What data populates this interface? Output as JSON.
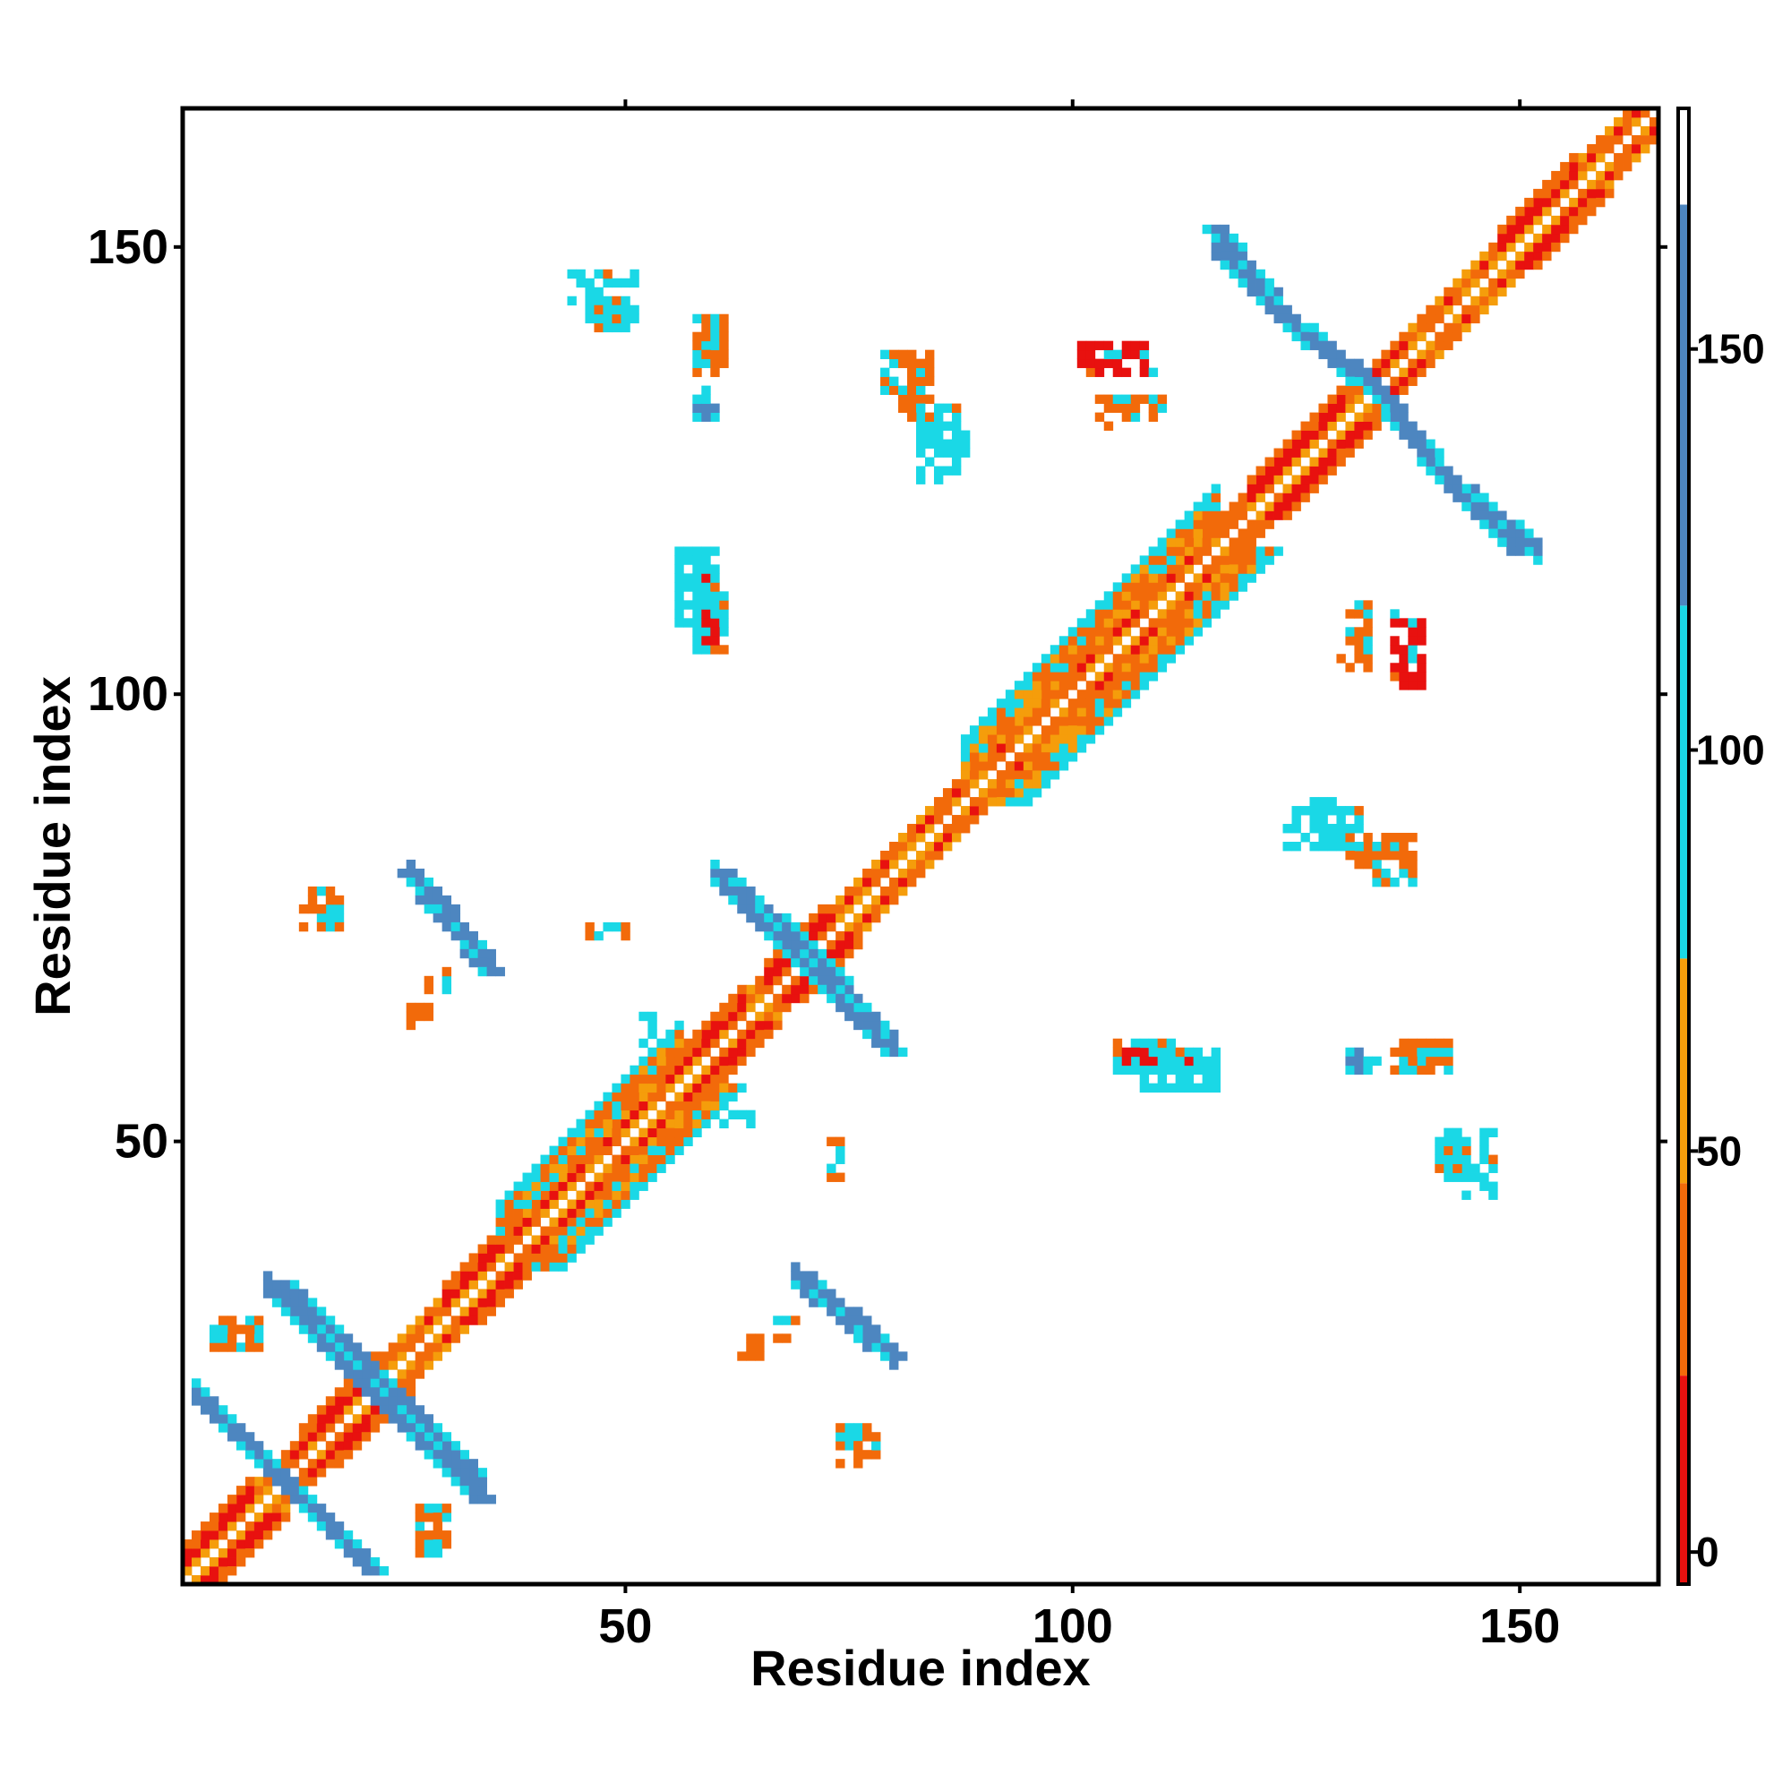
{
  "chart_data": {
    "type": "heatmap",
    "title": "",
    "xlabel": "Residue index",
    "ylabel": "Residue index",
    "xlim": [
      1,
      165
    ],
    "ylim": [
      1,
      165
    ],
    "x_ticks": [
      "50",
      "100",
      "150"
    ],
    "y_ticks": [
      "50",
      "100",
      "150"
    ],
    "colorbar": {
      "range": [
        -4,
        180
      ],
      "ticks": [
        "0",
        "50",
        "100",
        "150"
      ],
      "segments": [
        {
          "from": -4,
          "to": 22,
          "color": "#e8110f"
        },
        {
          "from": 22,
          "to": 46,
          "color": "#f26a0a"
        },
        {
          "from": 46,
          "to": 74,
          "color": "#f59d0b"
        },
        {
          "from": 74,
          "to": 118,
          "color": "#1ad8e6"
        },
        {
          "from": 118,
          "to": 168,
          "color": "#4d86c0"
        },
        {
          "from": 168,
          "to": 180,
          "color": "#ffffff"
        }
      ]
    },
    "grid": false,
    "symmetric": true,
    "diagonal_bands": [
      {
        "from": 1,
        "to": 165
      }
    ],
    "helix_bands": [
      {
        "from": 1,
        "to": 8
      },
      {
        "from": 14,
        "to": 22
      },
      {
        "from": 30,
        "to": 36
      },
      {
        "from": 55,
        "to": 63
      },
      {
        "from": 66,
        "to": 72
      },
      {
        "from": 120,
        "to": 130
      },
      {
        "from": 148,
        "to": 156
      }
    ],
    "sheet_bands": [
      {
        "from": 36,
        "to": 56
      },
      {
        "from": 88,
        "to": 96
      },
      {
        "from": 96,
        "to": 116
      }
    ],
    "antiparallel_pairs": [
      {
        "x": [
          12,
          22
        ],
        "y": [
          2,
          12
        ],
        "color": "blue"
      },
      {
        "x": [
          12,
          24
        ],
        "y": [
          22,
          34
        ],
        "color": "blue"
      },
      {
        "x": [
          22,
          34
        ],
        "y": [
          10,
          22
        ],
        "color": "blue"
      },
      {
        "x": [
          26,
          35
        ],
        "y": [
          69,
          80
        ],
        "color": "blue"
      },
      {
        "x": [
          61,
          72
        ],
        "y": [
          70,
          80
        ],
        "color": "blue"
      },
      {
        "x": [
          70,
          80
        ],
        "y": [
          60,
          70
        ],
        "color": "blue"
      },
      {
        "x": [
          70,
          80
        ],
        "y": [
          26,
          35
        ],
        "color": "blue"
      },
      {
        "x": [
          116,
          124
        ],
        "y": [
          142,
          152
        ],
        "color": "blue"
      },
      {
        "x": [
          124,
          134
        ],
        "y": [
          134,
          142
        ],
        "color": "blue"
      },
      {
        "x": [
          134,
          142
        ],
        "y": [
          124,
          134
        ],
        "color": "blue"
      },
      {
        "x": [
          142,
          150
        ],
        "y": [
          116,
          124
        ],
        "color": "blue"
      }
    ],
    "contact_patches": [
      {
        "x": 44,
        "y": 144,
        "w": 8,
        "h": 4,
        "kind": "cyan"
      },
      {
        "x": 58,
        "y": 138,
        "w": 4,
        "h": 5,
        "kind": "orange"
      },
      {
        "x": 58,
        "y": 131,
        "w": 3,
        "h": 4,
        "kind": "blue"
      },
      {
        "x": 79,
        "y": 132,
        "w": 6,
        "h": 7,
        "kind": "orange"
      },
      {
        "x": 83,
        "y": 127,
        "w": 6,
        "h": 5,
        "kind": "cyan"
      },
      {
        "x": 101,
        "y": 136,
        "w": 9,
        "h": 4,
        "kind": "red"
      },
      {
        "x": 56,
        "y": 108,
        "w": 5,
        "h": 9,
        "kind": "cyan"
      },
      {
        "x": 59,
        "y": 108,
        "w": 2,
        "h": 7,
        "kind": "red"
      },
      {
        "x": 124,
        "y": 83,
        "w": 9,
        "h": 5,
        "kind": "cyan"
      },
      {
        "x": 131,
        "y": 82,
        "w": 6,
        "h": 3,
        "kind": "orange"
      },
      {
        "x": 105,
        "y": 58,
        "w": 9,
        "h": 4,
        "kind": "cyan"
      },
      {
        "x": 106,
        "y": 59,
        "w": 4,
        "h": 2,
        "kind": "red"
      },
      {
        "x": 136,
        "y": 58,
        "w": 5,
        "h": 4,
        "kind": "orange"
      },
      {
        "x": 131,
        "y": 59,
        "w": 3,
        "h": 2,
        "kind": "blue"
      },
      {
        "x": 141,
        "y": 46,
        "w": 3,
        "h": 6,
        "kind": "cyan"
      },
      {
        "x": 130,
        "y": 103,
        "w": 4,
        "h": 8,
        "kind": "orange"
      },
      {
        "x": 4,
        "y": 27,
        "w": 6,
        "h": 3,
        "kind": "orange"
      },
      {
        "x": 15,
        "y": 75,
        "w": 4,
        "h": 4,
        "kind": "orange"
      },
      {
        "x": 28,
        "y": 67,
        "w": 3,
        "h": 3,
        "kind": "orange"
      },
      {
        "x": 28,
        "y": 4,
        "w": 3,
        "h": 6,
        "kind": "orange"
      },
      {
        "x": 63,
        "y": 26,
        "w": 3,
        "h": 3,
        "kind": "orange"
      },
      {
        "x": 74,
        "y": 14,
        "w": 5,
        "h": 4,
        "kind": "orange"
      },
      {
        "x": 74,
        "y": 17,
        "w": 4,
        "h": 2,
        "kind": "cyan"
      },
      {
        "x": 61,
        "y": 52,
        "w": 5,
        "h": 2,
        "kind": "cyan"
      },
      {
        "x": 46,
        "y": 73,
        "w": 6,
        "h": 2,
        "kind": "orange"
      }
    ]
  }
}
